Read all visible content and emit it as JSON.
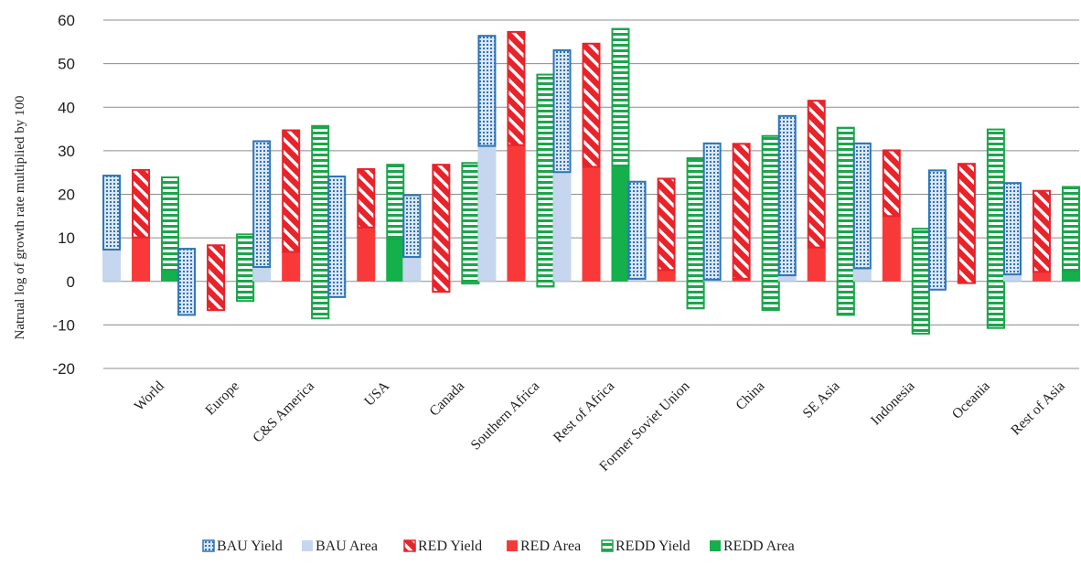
{
  "chart_data": {
    "type": "bar",
    "subtype": "stacked-range",
    "categories": [
      "World",
      "Europe",
      "C&S America",
      "USA",
      "Canada",
      "Southern Africa",
      "Rest of Africa",
      "Former Soviet Union",
      "China",
      "SE Asia",
      "Indonesia",
      "Oceania",
      "Rest of Asia"
    ],
    "ylabel": "Natrual log of growth rate multiplied by 100",
    "ylim": [
      -20,
      60
    ],
    "yticks": [
      -20,
      -10,
      0,
      10,
      20,
      30,
      40,
      50,
      60
    ],
    "legend_position": "bottom",
    "grid": "horizontal",
    "groups": [
      {
        "name": "BAU",
        "colors": {
          "yield_stroke": "#2e75b6",
          "yield_fill": "#dbe6f4",
          "area": "#c5d6ee"
        },
        "area": [
          7.3,
          -7.7,
          3.3,
          -3.6,
          5.6,
          31.1,
          25.1,
          0.6,
          0.4,
          1.4,
          3.0,
          -1.9,
          1.6
        ],
        "total": [
          24.5,
          7.7,
          32.4,
          24.3,
          20.0,
          56.6,
          53.3,
          23.1,
          31.9,
          38.2,
          31.9,
          25.7,
          22.8
        ]
      },
      {
        "name": "RED",
        "colors": {
          "yield_stroke": "#e8232a",
          "yield_fill": "#ffffff",
          "area": "#f93939"
        },
        "area": [
          10.1,
          -6.6,
          6.8,
          12.4,
          -2.4,
          31.3,
          26.3,
          2.6,
          0.6,
          7.8,
          15.0,
          -0.4,
          2.2
        ],
        "total": [
          25.8,
          8.5,
          34.9,
          26.0,
          27.0,
          57.5,
          54.8,
          23.8,
          31.8,
          41.7,
          30.3,
          27.2,
          21.0
        ]
      },
      {
        "name": "REDD",
        "colors": {
          "yield_stroke": "#1aa64a",
          "yield_fill": "#ffffff",
          "area": "#13b04b"
        },
        "area": [
          2.5,
          -4.5,
          -8.5,
          9.7,
          -0.5,
          -1.2,
          26.6,
          -6.2,
          -6.6,
          -7.7,
          -12.0,
          -10.7,
          2.4
        ],
        "total": [
          24.1,
          11.0,
          35.9,
          27.0,
          27.4,
          47.7,
          58.2,
          28.5,
          33.6,
          35.5,
          12.3,
          35.1,
          21.9
        ]
      }
    ],
    "legend": [
      "BAU Yield",
      "BAU Area",
      "RED Yield",
      "RED Area",
      "REDD Yield",
      "REDD Area"
    ]
  }
}
